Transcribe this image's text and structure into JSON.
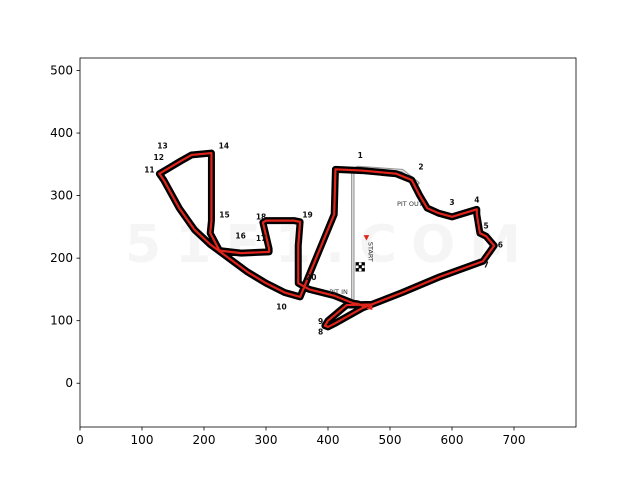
{
  "chart_data": {
    "type": "scatter",
    "title": "",
    "xlabel": "",
    "ylabel": "",
    "xlim": [
      0,
      800
    ],
    "ylim": [
      520,
      -70
    ],
    "y_inverted": true,
    "grid": false,
    "x_ticks": [
      0,
      100,
      200,
      300,
      400,
      500,
      600,
      700
    ],
    "y_ticks": [
      0,
      100,
      200,
      300,
      400,
      500
    ],
    "background_image": "Yas Marina circuit map",
    "watermark": "51F1.COM",
    "colors": {
      "track_outline": "#000000",
      "track_line": "#e0241b",
      "pit_lane": "#9a9a9a",
      "arrow": "#e0241b"
    },
    "series": [
      {
        "x": [
          355,
          330,
          300,
          270,
          240,
          210,
          185,
          160,
          135,
          128,
          145,
          162,
          180,
          212,
          212,
          212,
          210,
          225,
          260,
          305,
          305,
          295,
          300,
          345,
          355,
          352,
          352,
          370,
          410,
          440,
          448,
          460,
          470,
          430,
          400,
          395,
          400,
          410,
          455,
          520,
          580,
          650,
          668,
          655,
          645,
          640,
          640,
          620,
          600,
          578,
          560,
          548,
          535,
          510,
          455,
          412,
          410,
          355
        ],
        "y": [
          138,
          145,
          160,
          178,
          200,
          222,
          245,
          280,
          325,
          335,
          345,
          355,
          365,
          368,
          300,
          260,
          240,
          212,
          208,
          210,
          215,
          257,
          260,
          260,
          258,
          220,
          160,
          150,
          140,
          128,
          127,
          122,
          126,
          125,
          100,
          92,
          90,
          95,
          120,
          145,
          170,
          195,
          220,
          235,
          240,
          270,
          278,
          272,
          266,
          272,
          280,
          300,
          325,
          335,
          340,
          342,
          270,
          138
        ]
      }
    ],
    "labels": [
      {
        "text": "1",
        "x": 452,
        "y": 360
      },
      {
        "text": "2",
        "x": 550,
        "y": 342
      },
      {
        "text": "3",
        "x": 600,
        "y": 285
      },
      {
        "text": "4",
        "x": 640,
        "y": 289
      },
      {
        "text": "5",
        "x": 655,
        "y": 247
      },
      {
        "text": "6",
        "x": 678,
        "y": 217
      },
      {
        "text": "7",
        "x": 655,
        "y": 185
      },
      {
        "text": "8",
        "x": 388,
        "y": 78
      },
      {
        "text": "9",
        "x": 388,
        "y": 95
      },
      {
        "text": "10",
        "x": 325,
        "y": 118
      },
      {
        "text": "11",
        "x": 112,
        "y": 337
      },
      {
        "text": "12",
        "x": 127,
        "y": 357
      },
      {
        "text": "13",
        "x": 133,
        "y": 375
      },
      {
        "text": "14",
        "x": 232,
        "y": 375
      },
      {
        "text": "15",
        "x": 233,
        "y": 265
      },
      {
        "text": "16",
        "x": 259,
        "y": 231
      },
      {
        "text": "17",
        "x": 292,
        "y": 227
      },
      {
        "text": "18",
        "x": 292,
        "y": 262
      },
      {
        "text": "19",
        "x": 367,
        "y": 265
      },
      {
        "text": "20",
        "x": 373,
        "y": 165
      }
    ],
    "annotations": [
      {
        "text": "PIT IN",
        "x": 417,
        "y": 143
      },
      {
        "text": "PIT OUT",
        "x": 532,
        "y": 283
      },
      {
        "text": "START",
        "x": 465,
        "y": 210
      }
    ]
  }
}
